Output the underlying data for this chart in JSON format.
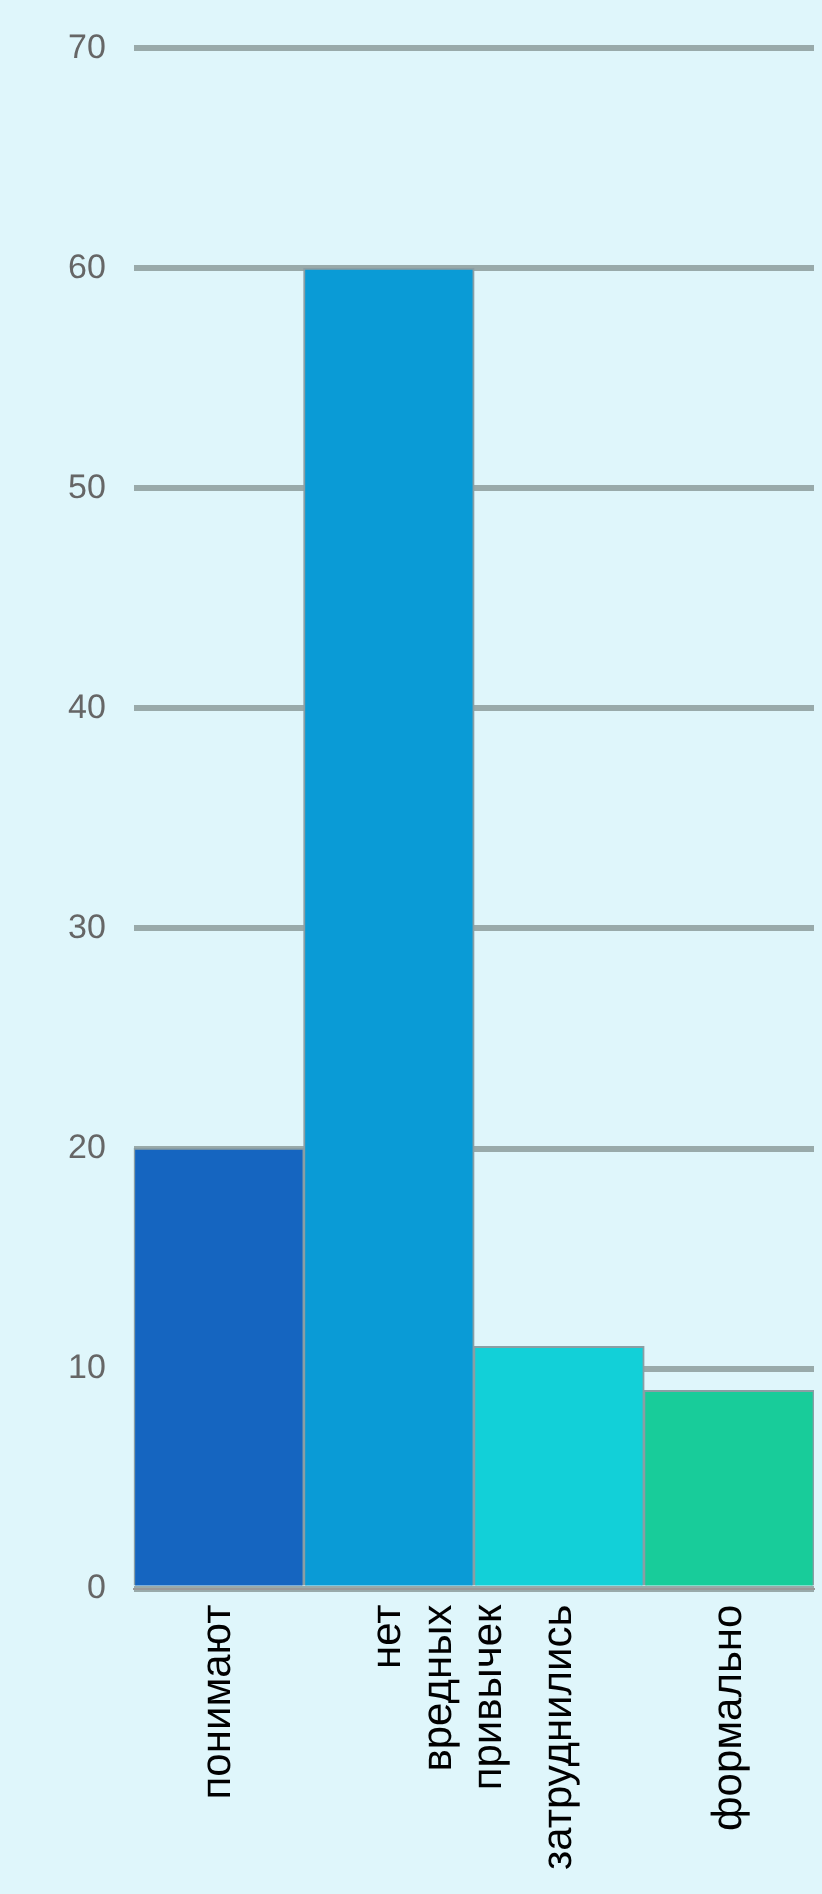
{
  "chart_data": {
    "type": "bar",
    "categories": [
      "понимают",
      "нет вредных привычек",
      "затруднились",
      "формально"
    ],
    "values": [
      20,
      60,
      11,
      9
    ],
    "colors": [
      "#1565c0",
      "#0a9bd6",
      "#12d0d8",
      "#18cc9a"
    ],
    "ylim": [
      0,
      70
    ],
    "yticks": [
      0,
      10,
      20,
      30,
      40,
      50,
      60,
      70
    ],
    "grid": "y",
    "legend": false
  }
}
